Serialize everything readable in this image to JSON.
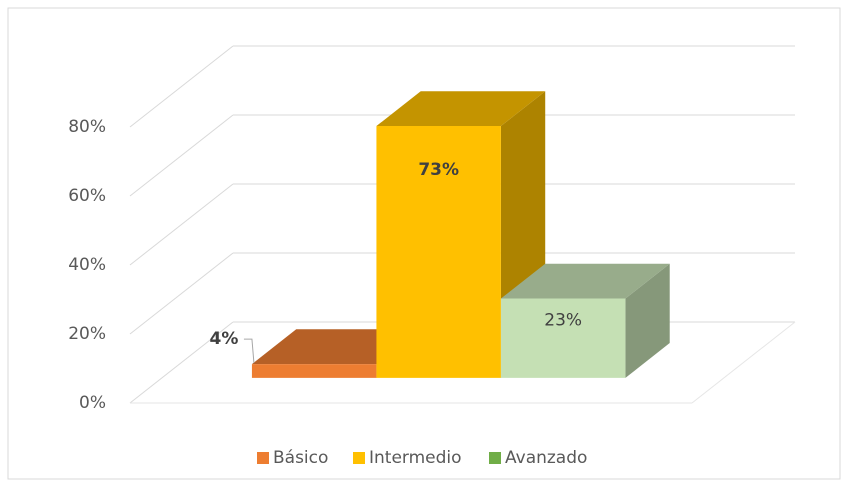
{
  "chart_data": {
    "type": "bar3d",
    "categories": [
      "Básico",
      "Intermedio",
      "Avanzado"
    ],
    "values": [
      4,
      73,
      23
    ],
    "value_labels": [
      "4%",
      "73%",
      "23%"
    ],
    "colors": [
      "#ed7d31",
      "#ffc000",
      "#70ad47"
    ],
    "bar_colors": [
      "#ed7d31",
      "#ffc000",
      "#c5e0b4"
    ],
    "ylim": [
      0,
      80
    ],
    "yticks": [
      {
        "value": 0,
        "label": "0%"
      },
      {
        "value": 20,
        "label": "20%"
      },
      {
        "value": 40,
        "label": "40%"
      },
      {
        "value": 60,
        "label": "60%"
      },
      {
        "value": 80,
        "label": "80%"
      }
    ],
    "grid": true,
    "legend": "bottom"
  }
}
